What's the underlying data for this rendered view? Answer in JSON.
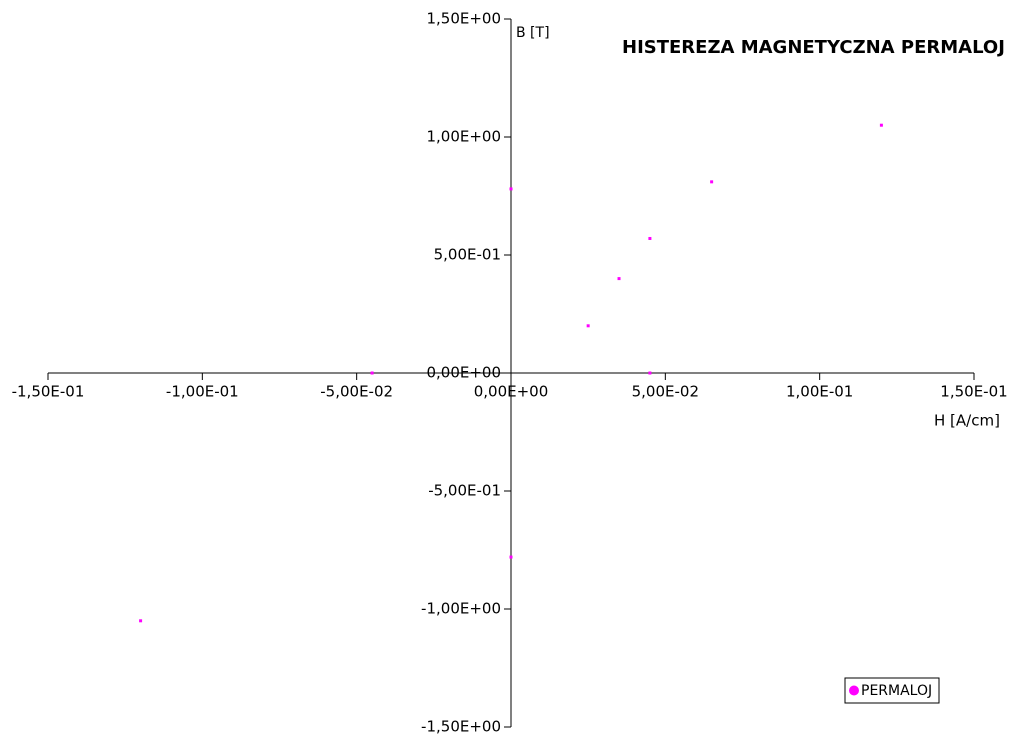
{
  "chart_data": {
    "type": "scatter",
    "title": "HISTEREZA MAGNETYCZNA PERMALOJ",
    "x_label": "H  [A/cm]",
    "y_label": "B [T]",
    "series": [
      {
        "name": "PERMALOJ",
        "color": "#ff00ff",
        "x": [
          0,
          0.12,
          0.065,
          0.045,
          0.035,
          0.025,
          0.045,
          -0.045,
          0,
          -0.12
        ],
        "values": [
          0.78,
          1.05,
          0.81,
          0.57,
          0.4,
          0.2,
          0,
          0,
          -0.78,
          -1.05
        ]
      }
    ],
    "xlim": [
      -0.15,
      0.15
    ],
    "xticks": [
      {
        "value": -0.15,
        "label": "-1,50E-01"
      },
      {
        "value": -0.1,
        "label": "-1,00E-01"
      },
      {
        "value": -0.05,
        "label": "-5,00E-02"
      },
      {
        "value": 0,
        "label": "0,00E+00"
      },
      {
        "value": 0.05,
        "label": "5,00E-02"
      },
      {
        "value": 0.1,
        "label": "1,00E-01"
      },
      {
        "value": 0.15,
        "label": "1,50E-01"
      }
    ],
    "ylim": [
      -1.5,
      1.5
    ],
    "yticks": [
      {
        "value": -1.5,
        "label": "-1,50E+00"
      },
      {
        "value": -1,
        "label": "-1,00E+00"
      },
      {
        "value": -0.5,
        "label": "-5,00E-01"
      },
      {
        "value": 0,
        "label": "0,00E+00"
      },
      {
        "value": 0.5,
        "label": "5,00E-01"
      },
      {
        "value": 1,
        "label": "1,00E+00"
      },
      {
        "value": 1.5,
        "label": "1,50E+00"
      }
    ],
    "legend": "bottom-right",
    "grid": false
  }
}
